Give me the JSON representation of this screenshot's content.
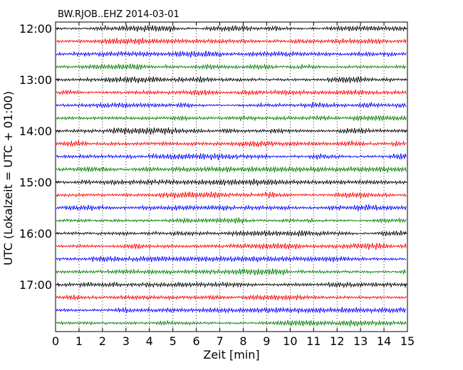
{
  "chart_data": {
    "type": "line",
    "title": "BW.RJOB..EHZ 2014-03-01",
    "xlabel": "Zeit  [min]",
    "ylabel": "UTC (Lokalzeit = UTC + 01:00)",
    "xlim": [
      0,
      15
    ],
    "x_ticks": [
      "0",
      "1",
      "2",
      "3",
      "4",
      "5",
      "6",
      "7",
      "8",
      "9",
      "10",
      "11",
      "12",
      "13",
      "14",
      "15"
    ],
    "y_ticks": [
      "12:00",
      "13:00",
      "14:00",
      "15:00",
      "16:00",
      "17:00"
    ],
    "grid": "vertical dotted at each minute",
    "trace_interval_minutes": 15,
    "start_time": "12:00",
    "end_time": "18:00",
    "trace_colors": [
      "#000000",
      "#ff0000",
      "#0000ff",
      "#007f00"
    ],
    "traces": [
      {
        "start": "12:00",
        "color": "#000000"
      },
      {
        "start": "12:15",
        "color": "#ff0000"
      },
      {
        "start": "12:30",
        "color": "#0000ff"
      },
      {
        "start": "12:45",
        "color": "#007f00"
      },
      {
        "start": "13:00",
        "color": "#000000"
      },
      {
        "start": "13:15",
        "color": "#ff0000"
      },
      {
        "start": "13:30",
        "color": "#0000ff"
      },
      {
        "start": "13:45",
        "color": "#007f00"
      },
      {
        "start": "14:00",
        "color": "#000000"
      },
      {
        "start": "14:15",
        "color": "#ff0000"
      },
      {
        "start": "14:30",
        "color": "#0000ff"
      },
      {
        "start": "14:45",
        "color": "#007f00"
      },
      {
        "start": "15:00",
        "color": "#000000"
      },
      {
        "start": "15:15",
        "color": "#ff0000"
      },
      {
        "start": "15:30",
        "color": "#0000ff"
      },
      {
        "start": "15:45",
        "color": "#007f00"
      },
      {
        "start": "16:00",
        "color": "#000000"
      },
      {
        "start": "16:15",
        "color": "#ff0000"
      },
      {
        "start": "16:30",
        "color": "#0000ff"
      },
      {
        "start": "16:45",
        "color": "#007f00"
      },
      {
        "start": "17:00",
        "color": "#000000"
      },
      {
        "start": "17:15",
        "color": "#ff0000"
      },
      {
        "start": "17:30",
        "color": "#0000ff"
      },
      {
        "start": "17:45",
        "color": "#007f00"
      }
    ]
  }
}
